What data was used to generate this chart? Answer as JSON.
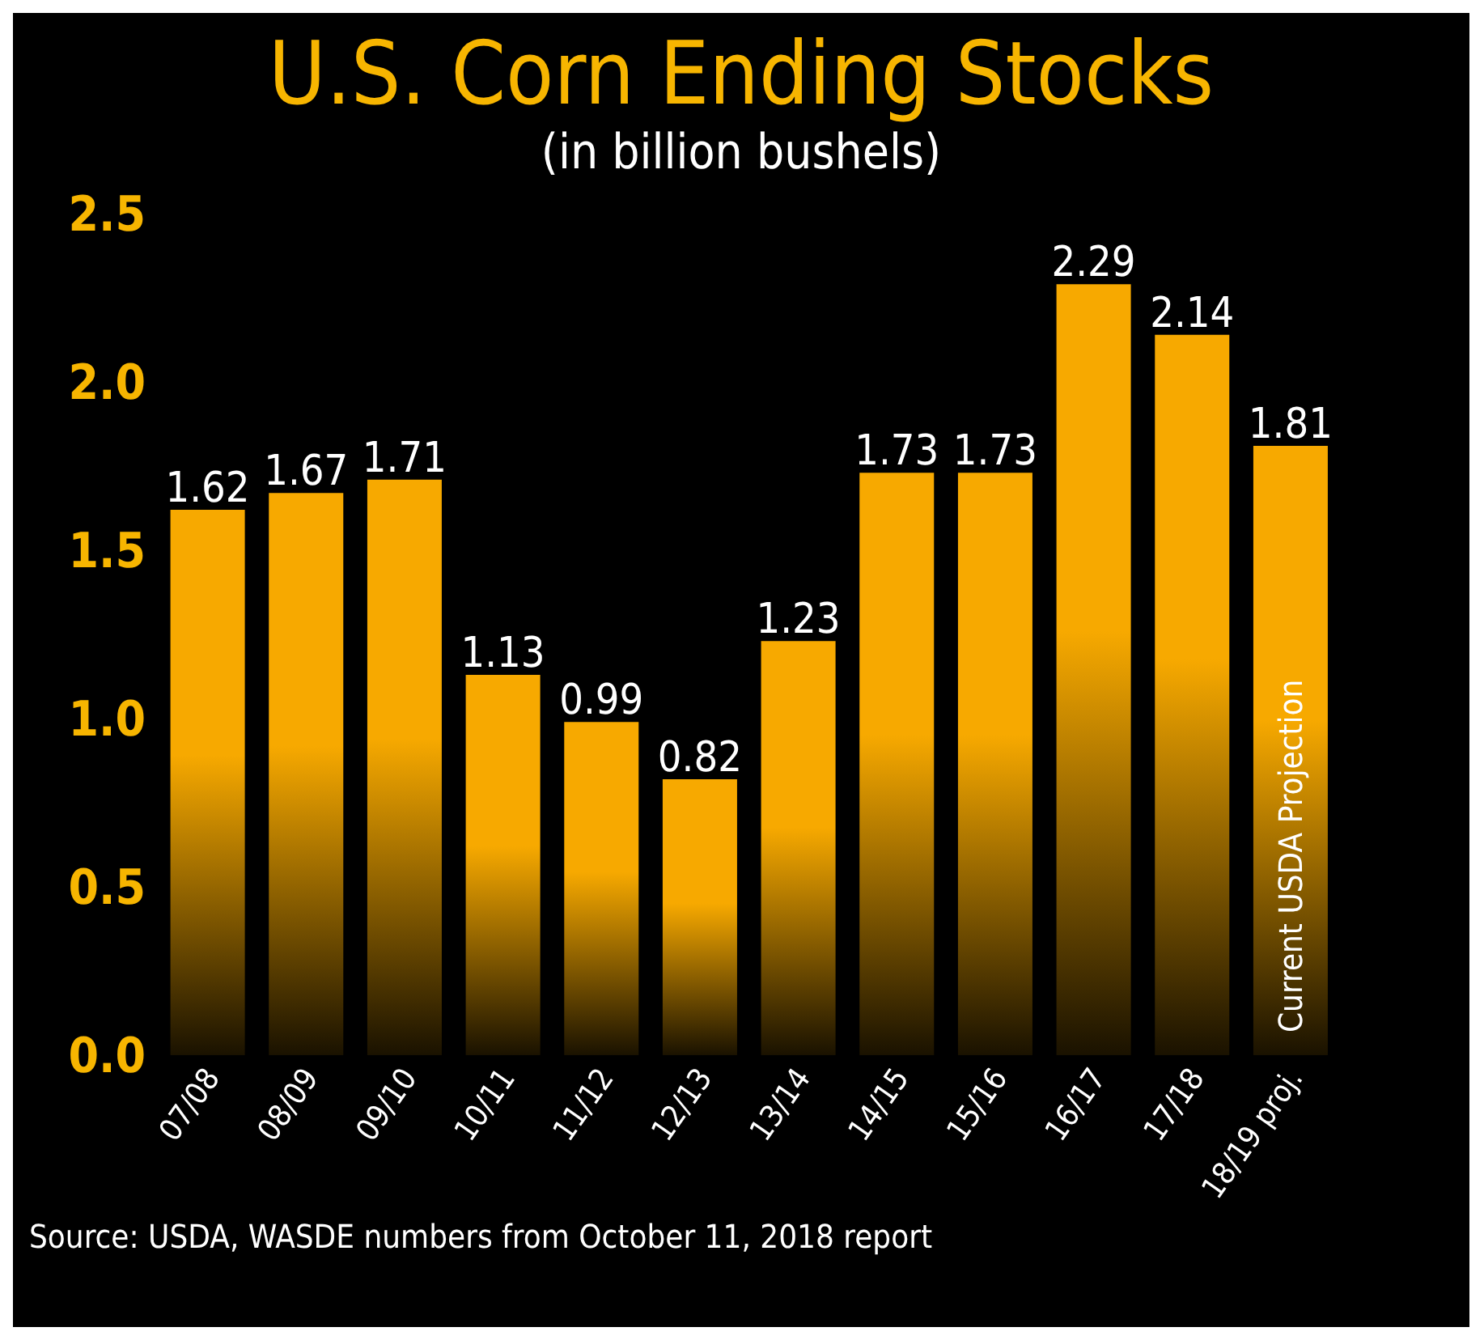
{
  "chart_data": {
    "type": "bar",
    "title": "U.S. Corn Ending Stocks",
    "subtitle": "(in billion bushels)",
    "categories": [
      "07/08",
      "08/09",
      "09/10",
      "10/11",
      "11/12",
      "12/13",
      "13/14",
      "14/15",
      "15/16",
      "16/17",
      "17/18",
      "18/19 proj."
    ],
    "series": [
      {
        "color": "#f7a900",
        "values": [
          1.62,
          1.67,
          1.71,
          1.13,
          0.99,
          0.82,
          1.23,
          1.73,
          1.73,
          2.29,
          2.14,
          1.81
        ]
      }
    ],
    "ylim": [
      0,
      2.5
    ],
    "yticks": [
      {
        "value": 0,
        "label": "0.0"
      },
      {
        "value": 0.5,
        "label": "0.5"
      },
      {
        "value": 1,
        "label": "1.0"
      },
      {
        "value": 1.5,
        "label": "1.5"
      },
      {
        "value": 2,
        "label": "2.0"
      },
      {
        "value": 2.5,
        "label": "2.5"
      }
    ],
    "grid": false,
    "legend": false,
    "data_labels": true,
    "annotations": [
      "Current USDA Projection",
      "Source: USDA, WASDE numbers from October 11, 2018 report"
    ]
  }
}
